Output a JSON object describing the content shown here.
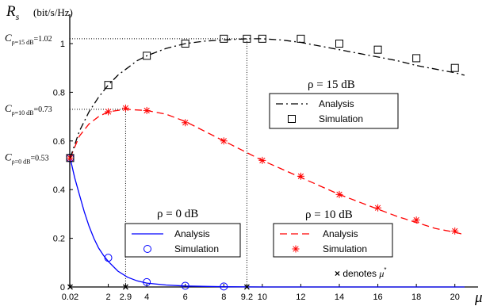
{
  "chart_data": {
    "type": "line",
    "ylabel_symbol": "R",
    "ylabel_sub": "s",
    "ylabel_unit": "(bit/s/Hz)",
    "xlabel": "μ",
    "xlim": [
      0,
      21
    ],
    "ylim": [
      0,
      1.1
    ],
    "grid": false,
    "x_ticks": [
      {
        "v": 0.02,
        "t": "0.02"
      },
      {
        "v": 2,
        "t": "2"
      },
      {
        "v": 2.9,
        "t": "2.9"
      },
      {
        "v": 4,
        "t": "4"
      },
      {
        "v": 6,
        "t": "6"
      },
      {
        "v": 8,
        "t": "8"
      },
      {
        "v": 9.2,
        "t": "9.2"
      },
      {
        "v": 10,
        "t": "10"
      },
      {
        "v": 12,
        "t": "12"
      },
      {
        "v": 14,
        "t": "14"
      },
      {
        "v": 16,
        "t": "16"
      },
      {
        "v": 18,
        "t": "18"
      },
      {
        "v": 20,
        "t": "20"
      }
    ],
    "y_ticks": [
      {
        "v": 0,
        "t": "0"
      },
      {
        "v": 0.2,
        "t": "0.2"
      },
      {
        "v": 0.4,
        "t": "0.4"
      },
      {
        "v": 0.6,
        "t": "0.6"
      },
      {
        "v": 0.8,
        "t": "0.8"
      },
      {
        "v": 1,
        "t": "1"
      }
    ],
    "capacity_labels": [
      {
        "c": "C",
        "sub": "ρ=0 dB",
        "eq": "=0.53",
        "y": 0.53
      },
      {
        "c": "C",
        "sub": "ρ=10 dB",
        "eq": "=0.73",
        "y": 0.73
      },
      {
        "c": "C",
        "sub": "ρ=15 dB",
        "eq": "=1.02",
        "y": 1.02
      }
    ],
    "optima": [
      {
        "x": 0.02,
        "y": 0.53
      },
      {
        "x": 2.9,
        "y": 0.73
      },
      {
        "x": 9.2,
        "y": 1.02
      }
    ],
    "series": [
      {
        "rho": "ρ = 0 dB",
        "color": "#0000ff",
        "line_style": "solid",
        "marker": "circle",
        "analysis_x": [
          0.02,
          0.25,
          0.5,
          0.75,
          1,
          1.25,
          1.5,
          1.75,
          2,
          2.5,
          3,
          3.5,
          4,
          5,
          6,
          8,
          10,
          12,
          14,
          16,
          18,
          20,
          20.5
        ],
        "analysis_y": [
          0.53,
          0.45,
          0.38,
          0.31,
          0.25,
          0.2,
          0.16,
          0.13,
          0.105,
          0.065,
          0.04,
          0.025,
          0.016,
          0.008,
          0.004,
          0.001,
          0,
          0,
          0,
          0,
          0,
          0,
          0
        ],
        "sim_x": [
          0.02,
          2,
          4,
          6,
          8
        ],
        "sim_y": [
          0.53,
          0.12,
          0.02,
          0.005,
          0.002
        ]
      },
      {
        "rho": "ρ = 10 dB",
        "color": "#ff0000",
        "line_style": "dashed",
        "marker": "star",
        "analysis_x": [
          0.02,
          0.5,
          1,
          1.5,
          2,
          2.9,
          4,
          5,
          6,
          7,
          8,
          9,
          10,
          11,
          12,
          13,
          14,
          15,
          16,
          17,
          18,
          19,
          20,
          20.5
        ],
        "analysis_y": [
          0.53,
          0.62,
          0.67,
          0.7,
          0.72,
          0.73,
          0.725,
          0.71,
          0.68,
          0.64,
          0.6,
          0.56,
          0.52,
          0.485,
          0.45,
          0.415,
          0.38,
          0.35,
          0.32,
          0.29,
          0.265,
          0.24,
          0.225,
          0.215
        ],
        "sim_x": [
          0.02,
          2,
          2.9,
          4,
          6,
          8,
          10,
          12,
          14,
          16,
          18,
          20
        ],
        "sim_y": [
          0.53,
          0.72,
          0.735,
          0.725,
          0.675,
          0.6,
          0.52,
          0.455,
          0.38,
          0.325,
          0.275,
          0.23
        ]
      },
      {
        "rho": "ρ = 15 dB",
        "color": "#000000",
        "line_style": "dashdot",
        "marker": "square",
        "analysis_x": [
          0.02,
          0.5,
          1,
          1.5,
          2,
          2.5,
          3,
          3.5,
          4,
          5,
          6,
          7,
          8,
          9.2,
          10,
          11,
          12,
          13,
          14,
          15,
          16,
          17,
          18,
          19,
          20,
          20.5
        ],
        "analysis_y": [
          0.53,
          0.64,
          0.72,
          0.78,
          0.83,
          0.87,
          0.9,
          0.93,
          0.95,
          0.98,
          1.0,
          1.01,
          1.015,
          1.02,
          1.02,
          1.015,
          1.005,
          0.99,
          0.975,
          0.96,
          0.945,
          0.93,
          0.91,
          0.895,
          0.88,
          0.87
        ],
        "sim_x": [
          0.02,
          2,
          4,
          6,
          8,
          9.2,
          10,
          12,
          14,
          16,
          18,
          20
        ],
        "sim_y": [
          0.53,
          0.83,
          0.95,
          1.0,
          1.02,
          1.02,
          1.02,
          1.02,
          1.0,
          0.975,
          0.94,
          0.9
        ]
      }
    ],
    "legends": [
      {
        "title": "ρ = 15 dB",
        "items": [
          "Analysis",
          "Simulation"
        ],
        "series": 2
      },
      {
        "title": "ρ = 10 dB",
        "items": [
          "Analysis",
          "Simulation"
        ],
        "series": 1
      },
      {
        "title": "ρ = 0 dB",
        "items": [
          "Analysis",
          "Simulation"
        ],
        "series": 0
      }
    ],
    "note_symbol": "×",
    "note_text": "denotes",
    "note_mu": "μ",
    "note_sup": "*"
  }
}
